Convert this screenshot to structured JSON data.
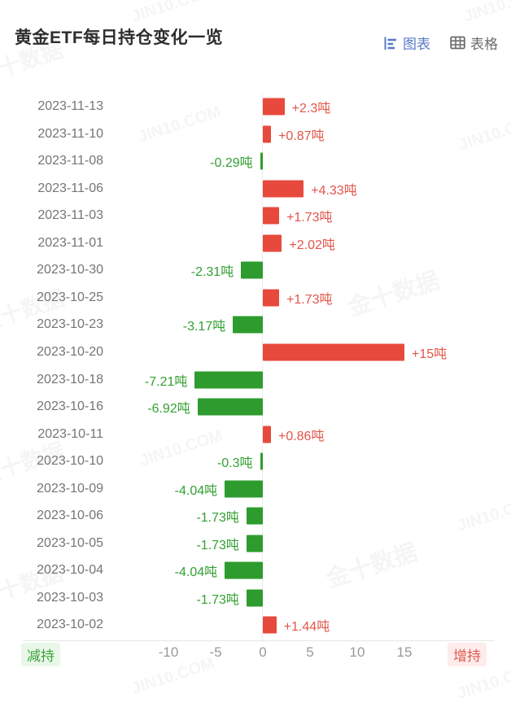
{
  "header": {
    "title": "黄金ETF每日持仓变化一览",
    "view_toggle": [
      {
        "label": "图表",
        "active": true
      },
      {
        "label": "表格",
        "active": false
      }
    ]
  },
  "legend": {
    "decrease": "减持",
    "increase": "增持"
  },
  "colors": {
    "increase_bar": "#e74a3c",
    "increase_text": "#e25549",
    "decrease_bar": "#2e9b2e",
    "decrease_text": "#33a033",
    "active_toggle": "#5b79c9",
    "inactive_toggle": "#6b6b6b"
  },
  "chart_data": {
    "type": "bar",
    "orientation": "horizontal",
    "unit": "吨",
    "title": "黄金ETF每日持仓变化一览",
    "categories": [
      "2023-11-13",
      "2023-11-10",
      "2023-11-08",
      "2023-11-06",
      "2023-11-03",
      "2023-11-01",
      "2023-10-30",
      "2023-10-25",
      "2023-10-23",
      "2023-10-20",
      "2023-10-18",
      "2023-10-16",
      "2023-10-11",
      "2023-10-10",
      "2023-10-09",
      "2023-10-06",
      "2023-10-05",
      "2023-10-04",
      "2023-10-03",
      "2023-10-02"
    ],
    "values": [
      2.3,
      0.87,
      -0.29,
      4.33,
      1.73,
      2.02,
      -2.31,
      1.73,
      -3.17,
      15,
      -7.21,
      -6.92,
      0.86,
      -0.3,
      -4.04,
      -1.73,
      -1.73,
      -4.04,
      -1.73,
      1.44
    ],
    "labels": [
      "+2.3吨",
      "+0.87吨",
      "-0.29吨",
      "+4.33吨",
      "+1.73吨",
      "+2.02吨",
      "-2.31吨",
      "+1.73吨",
      "-3.17吨",
      "+15吨",
      "-7.21吨",
      "-6.92吨",
      "+0.86吨",
      "-0.3吨",
      "-4.04吨",
      "-1.73吨",
      "-1.73吨",
      "-4.04吨",
      "-1.73吨",
      "+1.44吨"
    ],
    "x_ticks": [
      "-10",
      "-5",
      "0",
      "5",
      "10",
      "15"
    ],
    "x_tick_values": [
      -10,
      -5,
      0,
      5,
      10,
      15
    ],
    "xlim": [
      -12.7,
      18.6
    ],
    "grid": false,
    "legend_position": "bottom"
  },
  "watermarks": {
    "site": "JIN10.COM",
    "brand": "金十数据"
  }
}
